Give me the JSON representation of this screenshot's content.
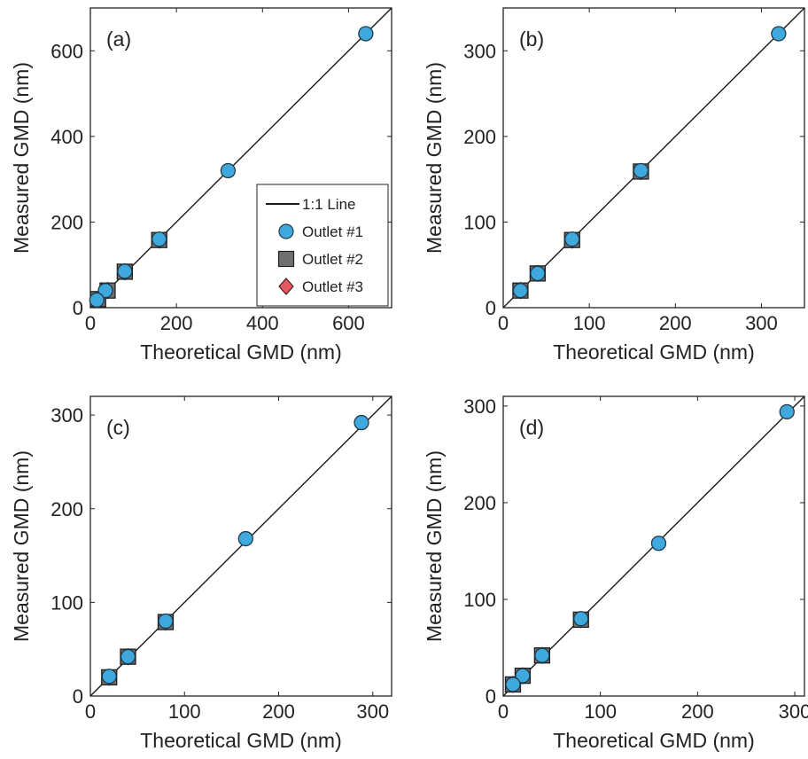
{
  "colors": {
    "outlet1": "#3FA8DD",
    "outlet2": "#707070",
    "outlet3": "#E8585F",
    "line": "#1a1a1a",
    "axis": "#222222"
  },
  "legend": {
    "items": [
      {
        "label": "1:1 Line",
        "marker": "line"
      },
      {
        "label": "Outlet #1",
        "marker": "circle"
      },
      {
        "label": "Outlet #2",
        "marker": "square"
      },
      {
        "label": "Outlet #3",
        "marker": "diamond"
      }
    ]
  },
  "chart_data": [
    {
      "panel": "(a)",
      "type": "scatter",
      "xlabel": "Theoretical GMD (nm)",
      "ylabel": "Measured GMD (nm)",
      "xlim": [
        0,
        700
      ],
      "ylim": [
        0,
        700
      ],
      "xticks": [
        0,
        200,
        400,
        600
      ],
      "yticks": [
        0,
        200,
        400,
        600
      ],
      "reference_line": "1:1 Line",
      "has_legend": true,
      "series": [
        {
          "name": "Outlet #1",
          "marker": "circle",
          "points": [
            [
              640,
              640
            ],
            [
              320,
              320
            ],
            [
              160,
              160
            ],
            [
              80,
              85
            ],
            [
              35,
              40
            ],
            [
              15,
              18
            ]
          ]
        },
        {
          "name": "Outlet #2",
          "marker": "square",
          "points": [
            [
              160,
              158
            ],
            [
              80,
              84
            ],
            [
              40,
              40
            ],
            [
              18,
              20
            ]
          ]
        },
        {
          "name": "Outlet #3",
          "marker": "diamond",
          "points": [
            [
              160,
              158
            ],
            [
              80,
              84
            ],
            [
              40,
              40
            ],
            [
              18,
              20
            ]
          ]
        }
      ]
    },
    {
      "panel": "(b)",
      "type": "scatter",
      "xlabel": "Theoretical GMD (nm)",
      "ylabel": "Measured GMD (nm)",
      "xlim": [
        0,
        350
      ],
      "ylim": [
        0,
        350
      ],
      "xticks": [
        0,
        100,
        200,
        300
      ],
      "yticks": [
        0,
        100,
        200,
        300
      ],
      "reference_line": "1:1 Line",
      "has_legend": false,
      "series": [
        {
          "name": "Outlet #1",
          "marker": "circle",
          "points": [
            [
              320,
              320
            ],
            [
              160,
              160
            ],
            [
              80,
              80
            ],
            [
              40,
              40
            ],
            [
              20,
              20
            ]
          ]
        },
        {
          "name": "Outlet #2",
          "marker": "square",
          "points": [
            [
              160,
              159
            ],
            [
              80,
              79
            ],
            [
              40,
              40
            ],
            [
              20,
              20
            ]
          ]
        },
        {
          "name": "Outlet #3",
          "marker": "diamond",
          "points": [
            [
              160,
              159
            ],
            [
              80,
              79
            ],
            [
              40,
              40
            ],
            [
              20,
              20
            ]
          ]
        }
      ]
    },
    {
      "panel": "(c)",
      "type": "scatter",
      "xlabel": "Theoretical GMD (nm)",
      "ylabel": "Measured GMD (nm)",
      "xlim": [
        0,
        320
      ],
      "ylim": [
        0,
        320
      ],
      "xticks": [
        0,
        100,
        200,
        300
      ],
      "yticks": [
        0,
        100,
        200,
        300
      ],
      "reference_line": "1:1 Line",
      "has_legend": false,
      "series": [
        {
          "name": "Outlet #1",
          "marker": "circle",
          "points": [
            [
              288,
              292
            ],
            [
              165,
              168
            ],
            [
              80,
              80
            ],
            [
              40,
              42
            ],
            [
              20,
              21
            ]
          ]
        },
        {
          "name": "Outlet #2",
          "marker": "square",
          "points": [
            [
              80,
              79
            ],
            [
              40,
              42
            ],
            [
              20,
              20
            ]
          ]
        },
        {
          "name": "Outlet #3",
          "marker": "diamond",
          "points": [
            [
              80,
              79
            ],
            [
              40,
              42
            ],
            [
              20,
              20
            ]
          ]
        }
      ]
    },
    {
      "panel": "(d)",
      "type": "scatter",
      "xlabel": "Theoretical GMD (nm)",
      "ylabel": "Measured GMD (nm)",
      "xlim": [
        0,
        310
      ],
      "ylim": [
        0,
        310
      ],
      "xticks": [
        0,
        100,
        200,
        300
      ],
      "yticks": [
        0,
        100,
        200,
        300
      ],
      "reference_line": "1:1 Line",
      "has_legend": false,
      "series": [
        {
          "name": "Outlet #1",
          "marker": "circle",
          "points": [
            [
              292,
              294
            ],
            [
              160,
              158
            ],
            [
              80,
              80
            ],
            [
              40,
              42
            ],
            [
              20,
              21
            ],
            [
              10,
              12
            ]
          ]
        },
        {
          "name": "Outlet #2",
          "marker": "square",
          "points": [
            [
              80,
              79
            ],
            [
              40,
              42
            ],
            [
              20,
              21
            ],
            [
              10,
              12
            ]
          ]
        },
        {
          "name": "Outlet #3",
          "marker": "diamond",
          "points": [
            [
              80,
              79
            ],
            [
              40,
              42
            ],
            [
              20,
              21
            ],
            [
              10,
              12
            ]
          ]
        }
      ]
    }
  ]
}
